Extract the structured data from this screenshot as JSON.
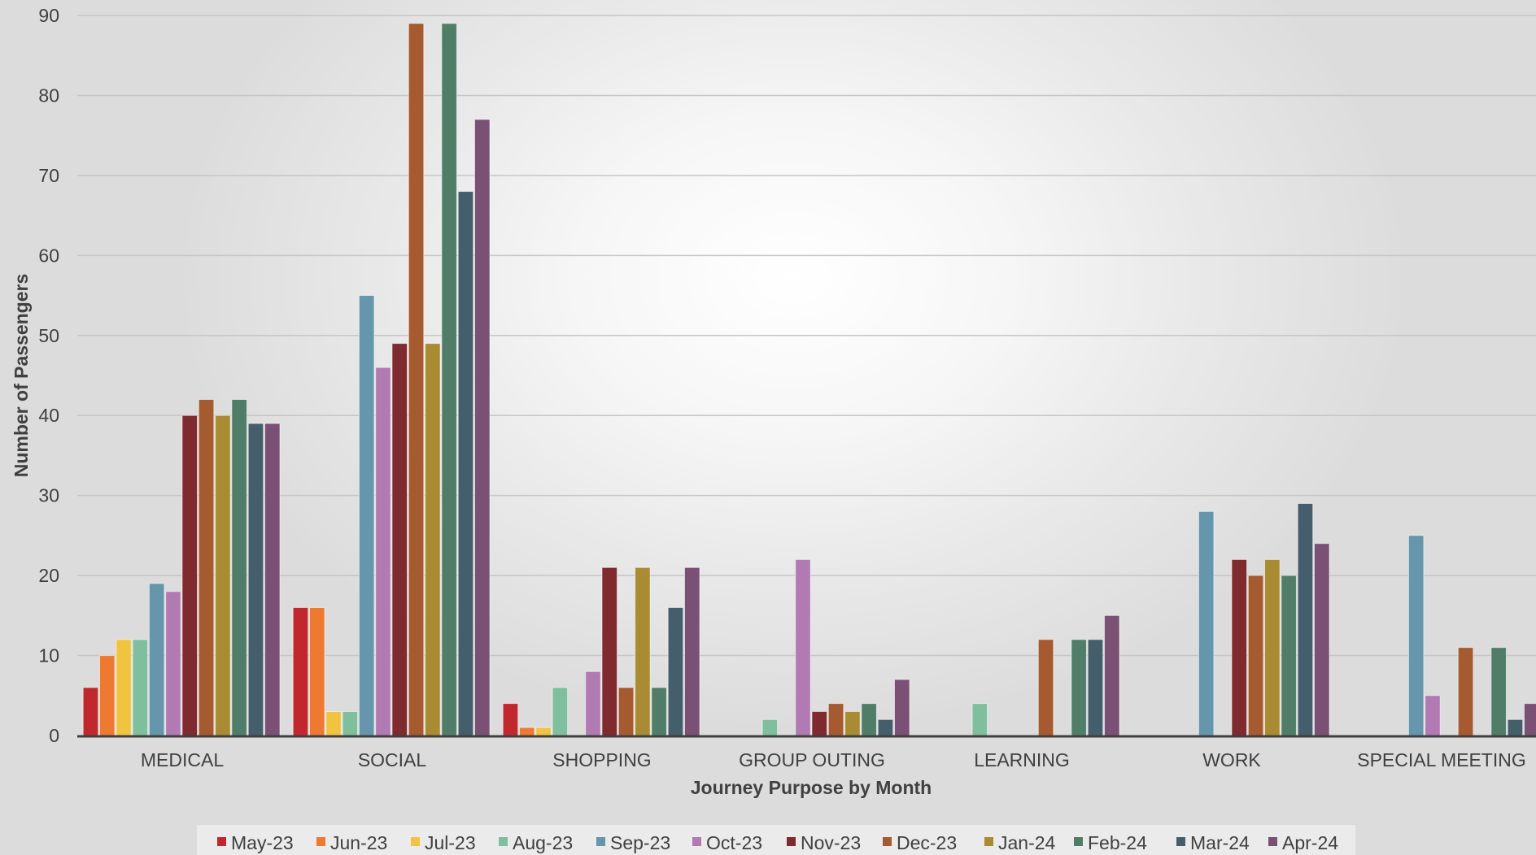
{
  "chart_data": {
    "type": "bar",
    "title": "",
    "xlabel": "Journey Purpose by Month",
    "ylabel": "Number of Passengers",
    "ylim": [
      0,
      90
    ],
    "yticks": [
      "0",
      "10",
      "20",
      "30",
      "40",
      "50",
      "60",
      "70",
      "80",
      "90"
    ],
    "grid": true,
    "legend_position": "bottom",
    "categories": [
      "MEDICAL",
      "SOCIAL",
      "SHOPPING",
      "GROUP OUTING",
      "LEARNING",
      "WORK",
      "SPECIAL MEETING"
    ],
    "series": [
      {
        "name": "May-23",
        "color": "#c0282d",
        "values": [
          6,
          16,
          4,
          0,
          0,
          0,
          0
        ]
      },
      {
        "name": "Jun-23",
        "color": "#ee7a32",
        "values": [
          10,
          16,
          1,
          0,
          0,
          0,
          0
        ]
      },
      {
        "name": "Jul-23",
        "color": "#f0c440",
        "values": [
          12,
          3,
          1,
          0,
          0,
          0,
          0
        ]
      },
      {
        "name": "Aug-23",
        "color": "#7fbf9e",
        "values": [
          12,
          3,
          6,
          2,
          4,
          0,
          0
        ]
      },
      {
        "name": "Sep-23",
        "color": "#6596ab",
        "values": [
          19,
          55,
          0,
          0,
          0,
          28,
          25
        ]
      },
      {
        "name": "Oct-23",
        "color": "#b17ab2",
        "values": [
          18,
          46,
          8,
          22,
          0,
          0,
          5
        ]
      },
      {
        "name": "Nov-23",
        "color": "#7e2a2e",
        "values": [
          40,
          49,
          21,
          3,
          0,
          22,
          0
        ]
      },
      {
        "name": "Dec-23",
        "color": "#a55a2f",
        "values": [
          42,
          89,
          6,
          4,
          12,
          20,
          11
        ]
      },
      {
        "name": "Jan-24",
        "color": "#a88b32",
        "values": [
          40,
          49,
          21,
          3,
          0,
          22,
          0
        ]
      },
      {
        "name": "Feb-24",
        "color": "#4f7d68",
        "values": [
          42,
          89,
          6,
          4,
          12,
          20,
          11
        ]
      },
      {
        "name": "Mar-24",
        "color": "#455e6c",
        "values": [
          39,
          68,
          16,
          2,
          12,
          29,
          2
        ]
      },
      {
        "name": "Apr-24",
        "color": "#7a5075",
        "values": [
          39,
          77,
          21,
          7,
          15,
          24,
          4
        ]
      }
    ]
  }
}
